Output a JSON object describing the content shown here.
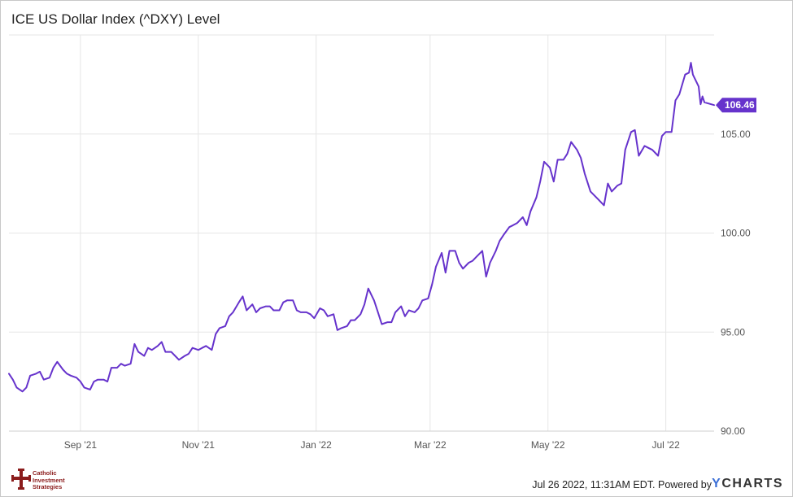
{
  "title": "ICE US Dollar Index (^DXY) Level",
  "footer": {
    "timestamp": "Jul 26 2022, 11:31AM EDT.",
    "powered_by": "Powered by",
    "brand_prefix": "Y",
    "brand_rest": "CHARTS"
  },
  "logo": {
    "lines": [
      "Catholic",
      "Investment",
      "Strategies"
    ]
  },
  "colors": {
    "line": "#6633cc",
    "grid": "#e6e6e6",
    "axis_text": "#555555",
    "brand_y": "#3b6fd6",
    "logo_red": "#8b1c1c"
  },
  "chart_data": {
    "type": "line",
    "title": "ICE US Dollar Index (^DXY) Level",
    "xlabel": "",
    "ylabel": "",
    "ylim": [
      90,
      110
    ],
    "yticks": [
      90,
      95,
      100,
      105
    ],
    "ytick_labels": [
      "90.00",
      "95.00",
      "100.00",
      "105.00"
    ],
    "xlim": [
      "2021-07-26",
      "2022-07-26"
    ],
    "xticks": [
      "2021-09-01",
      "2021-11-01",
      "2022-01-01",
      "2022-03-01",
      "2022-05-01",
      "2022-07-01"
    ],
    "xtick_labels": [
      "Sep '21",
      "Nov '21",
      "Jan '22",
      "Mar '22",
      "May '22",
      "Jul '22"
    ],
    "grid": true,
    "last_value_label": "106.46",
    "series": [
      {
        "values": [
          [
            "2021-07-26",
            92.9
          ],
          [
            "2021-07-28",
            92.6
          ],
          [
            "2021-07-30",
            92.2
          ],
          [
            "2021-08-02",
            92.0
          ],
          [
            "2021-08-04",
            92.2
          ],
          [
            "2021-08-06",
            92.8
          ],
          [
            "2021-08-09",
            92.9
          ],
          [
            "2021-08-11",
            93.0
          ],
          [
            "2021-08-13",
            92.6
          ],
          [
            "2021-08-16",
            92.7
          ],
          [
            "2021-08-18",
            93.2
          ],
          [
            "2021-08-20",
            93.5
          ],
          [
            "2021-08-23",
            93.1
          ],
          [
            "2021-08-25",
            92.9
          ],
          [
            "2021-08-27",
            92.8
          ],
          [
            "2021-08-30",
            92.7
          ],
          [
            "2021-09-01",
            92.5
          ],
          [
            "2021-09-03",
            92.2
          ],
          [
            "2021-09-06",
            92.1
          ],
          [
            "2021-09-08",
            92.5
          ],
          [
            "2021-09-10",
            92.6
          ],
          [
            "2021-09-13",
            92.6
          ],
          [
            "2021-09-15",
            92.5
          ],
          [
            "2021-09-17",
            93.2
          ],
          [
            "2021-09-20",
            93.2
          ],
          [
            "2021-09-22",
            93.4
          ],
          [
            "2021-09-24",
            93.3
          ],
          [
            "2021-09-27",
            93.4
          ],
          [
            "2021-09-29",
            94.4
          ],
          [
            "2021-10-01",
            94.0
          ],
          [
            "2021-10-04",
            93.8
          ],
          [
            "2021-10-06",
            94.2
          ],
          [
            "2021-10-08",
            94.1
          ],
          [
            "2021-10-11",
            94.3
          ],
          [
            "2021-10-13",
            94.5
          ],
          [
            "2021-10-15",
            94.0
          ],
          [
            "2021-10-18",
            94.0
          ],
          [
            "2021-10-20",
            93.8
          ],
          [
            "2021-10-22",
            93.6
          ],
          [
            "2021-10-25",
            93.8
          ],
          [
            "2021-10-27",
            93.9
          ],
          [
            "2021-10-29",
            94.2
          ],
          [
            "2021-11-01",
            94.1
          ],
          [
            "2021-11-03",
            94.2
          ],
          [
            "2021-11-05",
            94.3
          ],
          [
            "2021-11-08",
            94.1
          ],
          [
            "2021-11-10",
            94.9
          ],
          [
            "2021-11-12",
            95.2
          ],
          [
            "2021-11-15",
            95.3
          ],
          [
            "2021-11-17",
            95.8
          ],
          [
            "2021-11-19",
            96.0
          ],
          [
            "2021-11-22",
            96.5
          ],
          [
            "2021-11-24",
            96.8
          ],
          [
            "2021-11-26",
            96.1
          ],
          [
            "2021-11-29",
            96.4
          ],
          [
            "2021-12-01",
            96.0
          ],
          [
            "2021-12-03",
            96.2
          ],
          [
            "2021-12-06",
            96.3
          ],
          [
            "2021-12-08",
            96.3
          ],
          [
            "2021-12-10",
            96.1
          ],
          [
            "2021-12-13",
            96.1
          ],
          [
            "2021-12-15",
            96.5
          ],
          [
            "2021-12-17",
            96.6
          ],
          [
            "2021-12-20",
            96.6
          ],
          [
            "2021-12-22",
            96.1
          ],
          [
            "2021-12-24",
            96.0
          ],
          [
            "2021-12-27",
            96.0
          ],
          [
            "2021-12-29",
            95.9
          ],
          [
            "2021-12-31",
            95.7
          ],
          [
            "2022-01-03",
            96.2
          ],
          [
            "2022-01-05",
            96.1
          ],
          [
            "2022-01-07",
            95.8
          ],
          [
            "2022-01-10",
            95.9
          ],
          [
            "2022-01-12",
            95.1
          ],
          [
            "2022-01-14",
            95.2
          ],
          [
            "2022-01-17",
            95.3
          ],
          [
            "2022-01-19",
            95.6
          ],
          [
            "2022-01-21",
            95.6
          ],
          [
            "2022-01-24",
            95.9
          ],
          [
            "2022-01-26",
            96.4
          ],
          [
            "2022-01-28",
            97.2
          ],
          [
            "2022-01-31",
            96.6
          ],
          [
            "2022-02-02",
            96.0
          ],
          [
            "2022-02-04",
            95.4
          ],
          [
            "2022-02-07",
            95.5
          ],
          [
            "2022-02-09",
            95.5
          ],
          [
            "2022-02-11",
            96.0
          ],
          [
            "2022-02-14",
            96.3
          ],
          [
            "2022-02-16",
            95.8
          ],
          [
            "2022-02-18",
            96.1
          ],
          [
            "2022-02-21",
            96.0
          ],
          [
            "2022-02-23",
            96.2
          ],
          [
            "2022-02-25",
            96.6
          ],
          [
            "2022-02-28",
            96.7
          ],
          [
            "2022-03-02",
            97.4
          ],
          [
            "2022-03-04",
            98.3
          ],
          [
            "2022-03-07",
            99.0
          ],
          [
            "2022-03-09",
            98.0
          ],
          [
            "2022-03-11",
            99.1
          ],
          [
            "2022-03-14",
            99.1
          ],
          [
            "2022-03-16",
            98.5
          ],
          [
            "2022-03-18",
            98.2
          ],
          [
            "2022-03-21",
            98.5
          ],
          [
            "2022-03-23",
            98.6
          ],
          [
            "2022-03-25",
            98.8
          ],
          [
            "2022-03-28",
            99.1
          ],
          [
            "2022-03-30",
            97.8
          ],
          [
            "2022-04-01",
            98.5
          ],
          [
            "2022-04-04",
            99.1
          ],
          [
            "2022-04-06",
            99.6
          ],
          [
            "2022-04-08",
            99.9
          ],
          [
            "2022-04-11",
            100.3
          ],
          [
            "2022-04-13",
            100.4
          ],
          [
            "2022-04-15",
            100.5
          ],
          [
            "2022-04-18",
            100.8
          ],
          [
            "2022-04-20",
            100.4
          ],
          [
            "2022-04-22",
            101.1
          ],
          [
            "2022-04-25",
            101.8
          ],
          [
            "2022-04-27",
            102.6
          ],
          [
            "2022-04-29",
            103.6
          ],
          [
            "2022-05-02",
            103.3
          ],
          [
            "2022-05-04",
            102.6
          ],
          [
            "2022-05-06",
            103.7
          ],
          [
            "2022-05-09",
            103.7
          ],
          [
            "2022-05-11",
            104.0
          ],
          [
            "2022-05-13",
            104.6
          ],
          [
            "2022-05-16",
            104.2
          ],
          [
            "2022-05-18",
            103.8
          ],
          [
            "2022-05-20",
            103.0
          ],
          [
            "2022-05-23",
            102.1
          ],
          [
            "2022-05-25",
            101.9
          ],
          [
            "2022-05-27",
            101.7
          ],
          [
            "2022-05-30",
            101.4
          ],
          [
            "2022-06-01",
            102.5
          ],
          [
            "2022-06-03",
            102.1
          ],
          [
            "2022-06-06",
            102.4
          ],
          [
            "2022-06-08",
            102.5
          ],
          [
            "2022-06-10",
            104.2
          ],
          [
            "2022-06-13",
            105.1
          ],
          [
            "2022-06-15",
            105.2
          ],
          [
            "2022-06-17",
            103.9
          ],
          [
            "2022-06-20",
            104.4
          ],
          [
            "2022-06-22",
            104.3
          ],
          [
            "2022-06-24",
            104.2
          ],
          [
            "2022-06-27",
            103.9
          ],
          [
            "2022-06-29",
            104.9
          ],
          [
            "2022-07-01",
            105.1
          ],
          [
            "2022-07-04",
            105.1
          ],
          [
            "2022-07-06",
            106.7
          ],
          [
            "2022-07-08",
            107.0
          ],
          [
            "2022-07-11",
            108.0
          ],
          [
            "2022-07-13",
            108.1
          ],
          [
            "2022-07-14",
            108.6
          ],
          [
            "2022-07-15",
            108.0
          ],
          [
            "2022-07-18",
            107.4
          ],
          [
            "2022-07-19",
            106.5
          ],
          [
            "2022-07-20",
            106.9
          ],
          [
            "2022-07-21",
            106.6
          ],
          [
            "2022-07-26",
            106.46
          ]
        ]
      }
    ]
  }
}
